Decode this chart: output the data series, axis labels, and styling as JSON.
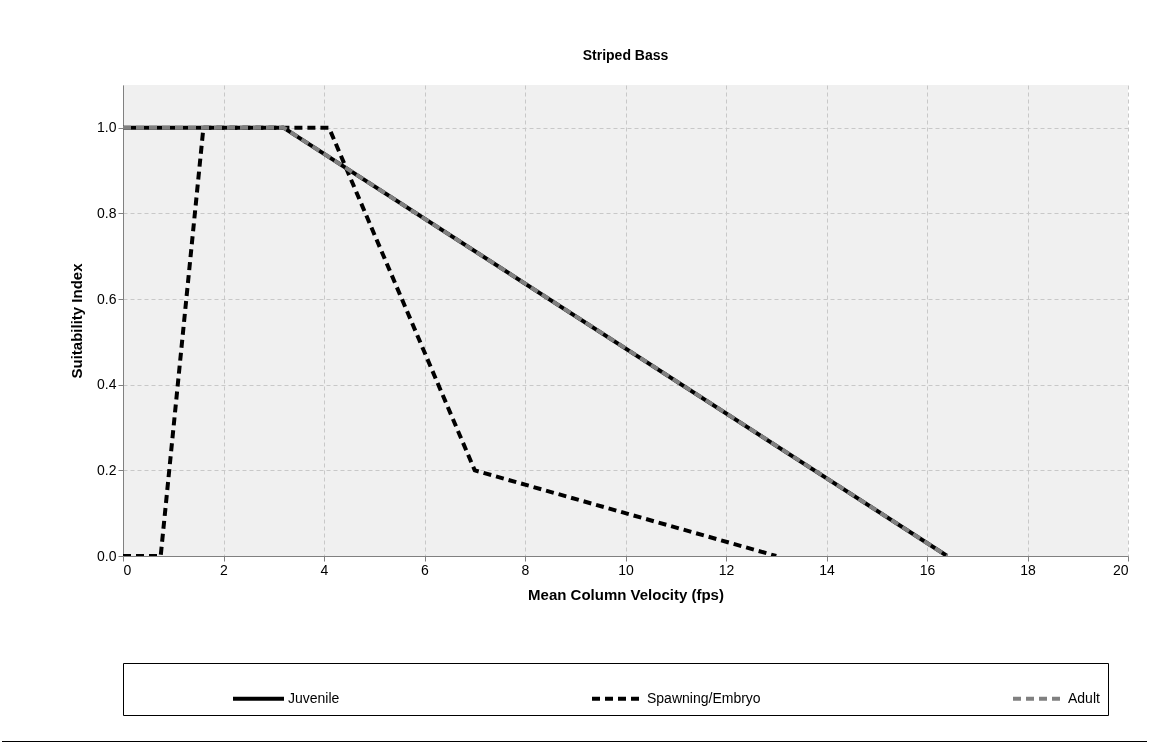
{
  "chart_data": {
    "type": "line",
    "title": "Striped Bass",
    "xlabel": "Mean Column Velocity (fps)",
    "ylabel": "Suitability Index",
    "series": [
      {
        "name": "Juvenile",
        "color": "#000000",
        "line_style": "solid",
        "x": [
          0,
          3.2,
          16.4
        ],
        "values": [
          1,
          1,
          0
        ]
      },
      {
        "name": "Spawning/Embryo",
        "color": "#000000",
        "line_style": "dashed",
        "x": [
          0,
          0.75,
          1.6,
          4.1,
          7,
          13
        ],
        "values": [
          0,
          0,
          1,
          1,
          0.2,
          0
        ]
      },
      {
        "name": "Adult",
        "color": "#808080",
        "line_style": "dashed",
        "x": [
          0,
          3.2,
          16.4
        ],
        "values": [
          1,
          1,
          0
        ]
      }
    ],
    "xlim": [
      0,
      20
    ],
    "xticks": [
      0,
      2,
      4,
      6,
      8,
      10,
      12,
      14,
      16,
      18,
      20
    ],
    "ylim": [
      0,
      1.1
    ],
    "yticks": [
      {
        "value": 0,
        "label": "0.0"
      },
      {
        "value": 0.2,
        "label": "0.2"
      },
      {
        "value": 0.4,
        "label": "0.4"
      },
      {
        "value": 0.6,
        "label": "0.6"
      },
      {
        "value": 0.8,
        "label": "0.8"
      },
      {
        "value": 1,
        "label": "1.0"
      }
    ],
    "grid": true,
    "legend": "bottom",
    "marker": "none"
  }
}
